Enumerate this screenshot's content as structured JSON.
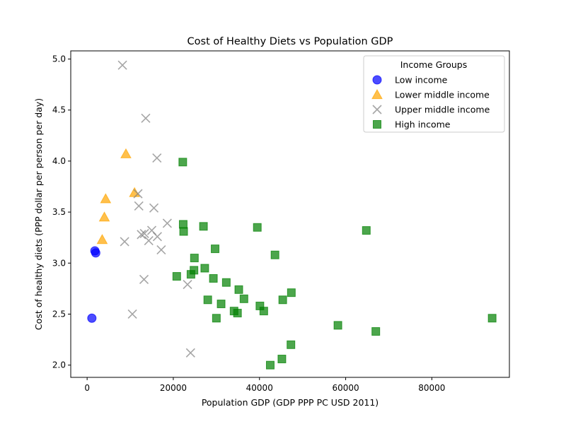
{
  "chart_data": {
    "type": "scatter",
    "title": "Cost of Healthy Diets vs Population GDP",
    "xlabel": "Population GDP (GDP PPP PC USD 2011)",
    "ylabel": "Cost of healthy diets (PPP dollar per person per day)",
    "xlim": [
      -3800,
      98000
    ],
    "ylim": [
      1.88,
      5.08
    ],
    "x_ticks": [
      0,
      20000,
      40000,
      60000,
      80000
    ],
    "y_ticks": [
      2.0,
      2.5,
      3.0,
      3.5,
      4.0,
      4.5,
      5.0
    ],
    "grid": false,
    "legend": {
      "title": "Income Groups",
      "placement": "top-right"
    },
    "series": [
      {
        "name": "Low income",
        "marker": "circle",
        "color": "#0000ff",
        "points": [
          [
            1100,
            2.46
          ],
          [
            1800,
            3.12
          ],
          [
            2000,
            3.1
          ]
        ]
      },
      {
        "name": "Lower middle income",
        "marker": "triangle",
        "color": "#ffa500",
        "points": [
          [
            3500,
            3.23
          ],
          [
            4000,
            3.45
          ],
          [
            4300,
            3.63
          ],
          [
            9000,
            4.07
          ],
          [
            11000,
            3.69
          ]
        ]
      },
      {
        "name": "Upper middle income",
        "marker": "x",
        "color": "#808080",
        "points": [
          [
            8200,
            4.94
          ],
          [
            8700,
            3.21
          ],
          [
            10500,
            2.5
          ],
          [
            11800,
            3.68
          ],
          [
            12000,
            3.56
          ],
          [
            12600,
            3.28
          ],
          [
            13200,
            2.84
          ],
          [
            13300,
            3.29
          ],
          [
            13600,
            4.42
          ],
          [
            14300,
            3.22
          ],
          [
            15000,
            3.32
          ],
          [
            15500,
            3.54
          ],
          [
            16200,
            4.03
          ],
          [
            16300,
            3.26
          ],
          [
            17200,
            3.13
          ],
          [
            18600,
            3.39
          ],
          [
            23300,
            2.79
          ],
          [
            24000,
            2.12
          ]
        ]
      },
      {
        "name": "High income",
        "marker": "square",
        "color": "#008000",
        "points": [
          [
            20800,
            2.87
          ],
          [
            22200,
            3.99
          ],
          [
            22300,
            3.38
          ],
          [
            22400,
            3.31
          ],
          [
            24100,
            2.89
          ],
          [
            24800,
            2.93
          ],
          [
            24900,
            3.05
          ],
          [
            27000,
            3.36
          ],
          [
            27300,
            2.95
          ],
          [
            28000,
            2.64
          ],
          [
            29300,
            2.85
          ],
          [
            29700,
            3.14
          ],
          [
            30000,
            2.46
          ],
          [
            31100,
            2.6
          ],
          [
            32300,
            2.81
          ],
          [
            34100,
            2.53
          ],
          [
            34900,
            2.51
          ],
          [
            35200,
            2.74
          ],
          [
            36400,
            2.65
          ],
          [
            39500,
            3.35
          ],
          [
            40100,
            2.58
          ],
          [
            41000,
            2.53
          ],
          [
            42500,
            2.0
          ],
          [
            43600,
            3.08
          ],
          [
            45200,
            2.06
          ],
          [
            45400,
            2.64
          ],
          [
            47300,
            2.2
          ],
          [
            47400,
            2.71
          ],
          [
            58200,
            2.39
          ],
          [
            64800,
            3.32
          ],
          [
            67000,
            2.33
          ],
          [
            94000,
            2.46
          ]
        ]
      }
    ]
  }
}
